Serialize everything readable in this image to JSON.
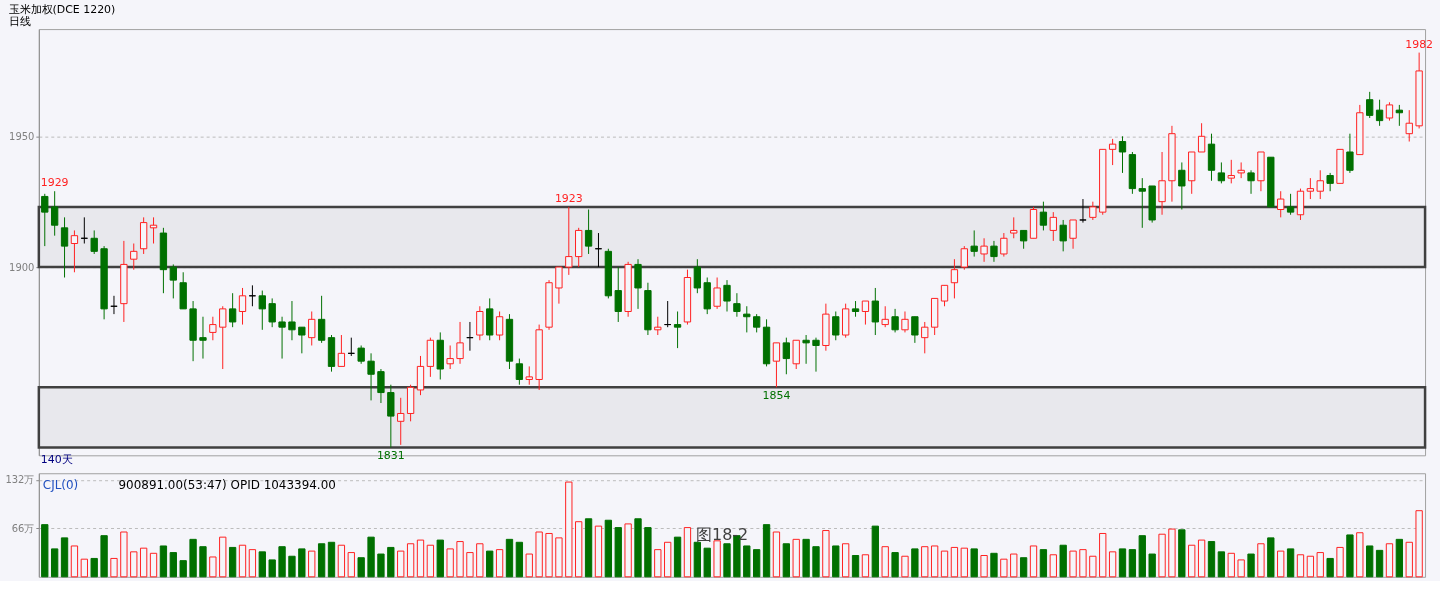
{
  "chart_data": [
    {
      "type": "candlestick",
      "title": "玉米加权(DCE 1220)",
      "subtitle": "日线",
      "categories": [
        null,
        null,
        null,
        null,
        null,
        null,
        null,
        null,
        null,
        null,
        null,
        null,
        null,
        null,
        null,
        null,
        null,
        null,
        null,
        null,
        null,
        null,
        null,
        null,
        null,
        null,
        null,
        null,
        null,
        null,
        null,
        null,
        null,
        null,
        null,
        null,
        null,
        null,
        null,
        null,
        null,
        null,
        null,
        null,
        null,
        null,
        null,
        null,
        null,
        null,
        null,
        null,
        null,
        null,
        null,
        null,
        null,
        null,
        null,
        null,
        null,
        null,
        null,
        null,
        null,
        null,
        null,
        null,
        null,
        null,
        null,
        null,
        null,
        null,
        null,
        null,
        null,
        null,
        null,
        null,
        null,
        null,
        null,
        null,
        null,
        null,
        null,
        null,
        null,
        null,
        null,
        null,
        null,
        null,
        null,
        null,
        null,
        null,
        null,
        null,
        null,
        null,
        null,
        null,
        null,
        null,
        null,
        null,
        null,
        null,
        null,
        null,
        null,
        null,
        null,
        null,
        null,
        null,
        null,
        null,
        null,
        null,
        null,
        null,
        null,
        null,
        null,
        null,
        null,
        null,
        null,
        null,
        null,
        null,
        null,
        null,
        null,
        null,
        null,
        null
      ],
      "ohlc": [
        [
          1927,
          1928,
          1908,
          1921
        ],
        [
          1923,
          1929,
          1912,
          1916
        ],
        [
          1915,
          1919,
          1896,
          1908
        ],
        [
          1909,
          1914,
          1898,
          1912
        ],
        [
          1911,
          1919,
          1909,
          1911
        ],
        [
          1911,
          1914,
          1905,
          1906
        ],
        [
          1907,
          1908,
          1880,
          1884
        ],
        [
          1885,
          1889,
          1882,
          1885
        ],
        [
          1886,
          1910,
          1879,
          1901
        ],
        [
          1903,
          1909,
          1899,
          1906
        ],
        [
          1907,
          1919,
          1905,
          1917
        ],
        [
          1915,
          1919,
          1909,
          1916
        ],
        [
          1913,
          1915,
          1890,
          1899
        ],
        [
          1900,
          1901,
          1888,
          1895
        ],
        [
          1894,
          1898,
          1884,
          1884
        ],
        [
          1884,
          1887,
          1864,
          1872
        ],
        [
          1873,
          1881,
          1865,
          1872
        ],
        [
          1875,
          1881,
          1872,
          1878
        ],
        [
          1877,
          1885,
          1861,
          1884
        ],
        [
          1884,
          1890,
          1877,
          1879
        ],
        [
          1883,
          1892,
          1878,
          1889
        ],
        [
          1889,
          1893,
          1885,
          1889
        ],
        [
          1889,
          1891,
          1876,
          1884
        ],
        [
          1886,
          1888,
          1877,
          1879
        ],
        [
          1879,
          1881,
          1865,
          1877
        ],
        [
          1879,
          1887,
          1872,
          1876
        ],
        [
          1877,
          1877,
          1867,
          1874
        ],
        [
          1873,
          1883,
          1870,
          1880
        ],
        [
          1880,
          1889,
          1871,
          1872
        ],
        [
          1873,
          1874,
          1860,
          1862
        ],
        [
          1862,
          1874,
          1862,
          1867
        ],
        [
          1867,
          1873,
          1866,
          1867
        ],
        [
          1869,
          1870,
          1863,
          1864
        ],
        [
          1864,
          1867,
          1849,
          1859
        ],
        [
          1860,
          1861,
          1848,
          1852
        ],
        [
          1852,
          1855,
          1831,
          1843
        ],
        [
          1841,
          1850,
          1832,
          1844
        ],
        [
          1844,
          1855,
          1841,
          1854
        ],
        [
          1853,
          1866,
          1851,
          1862
        ],
        [
          1862,
          1873,
          1858,
          1872
        ],
        [
          1872,
          1875,
          1857,
          1861
        ],
        [
          1863,
          1870,
          1861,
          1865
        ],
        [
          1865,
          1879,
          1863,
          1871
        ],
        [
          1873,
          1879,
          1868,
          1873
        ],
        [
          1874,
          1885,
          1872,
          1883
        ],
        [
          1884,
          1888,
          1872,
          1874
        ],
        [
          1874,
          1883,
          1872,
          1881
        ],
        [
          1880,
          1882,
          1861,
          1864
        ],
        [
          1863,
          1865,
          1855,
          1857
        ],
        [
          1857,
          1862,
          1855,
          1858
        ],
        [
          1857,
          1878,
          1853,
          1876
        ],
        [
          1877,
          1895,
          1876,
          1894
        ],
        [
          1892,
          1900,
          1886,
          1900
        ],
        [
          1900,
          1923,
          1897,
          1904
        ],
        [
          1904,
          1915,
          1900,
          1914
        ],
        [
          1914,
          1922,
          1905,
          1908
        ],
        [
          1907,
          1913,
          1900,
          1907
        ],
        [
          1906,
          1907,
          1888,
          1889
        ],
        [
          1891,
          1900,
          1879,
          1883
        ],
        [
          1883,
          1902,
          1881,
          1901
        ],
        [
          1901,
          1903,
          1884,
          1892
        ],
        [
          1891,
          1894,
          1874,
          1876
        ],
        [
          1876,
          1881,
          1874,
          1877
        ],
        [
          1878,
          1887,
          1877,
          1878
        ],
        [
          1878,
          1883,
          1869,
          1877
        ],
        [
          1879,
          1899,
          1878,
          1896
        ],
        [
          1900,
          1903,
          1890,
          1892
        ],
        [
          1894,
          1896,
          1882,
          1884
        ],
        [
          1885,
          1896,
          1884,
          1892
        ],
        [
          1893,
          1895,
          1883,
          1887
        ],
        [
          1886,
          1890,
          1881,
          1883
        ],
        [
          1882,
          1885,
          1875,
          1881
        ],
        [
          1881,
          1882,
          1875,
          1877
        ],
        [
          1877,
          1880,
          1862,
          1863
        ],
        [
          1864,
          1871,
          1854,
          1871
        ],
        [
          1871,
          1873,
          1859,
          1865
        ],
        [
          1863,
          1872,
          1861,
          1872
        ],
        [
          1872,
          1874,
          1863,
          1871
        ],
        [
          1872,
          1873,
          1860,
          1870
        ],
        [
          1870,
          1886,
          1868,
          1882
        ],
        [
          1881,
          1883,
          1872,
          1874
        ],
        [
          1874,
          1886,
          1873,
          1884
        ],
        [
          1884,
          1887,
          1881,
          1883
        ],
        [
          1883,
          1887,
          1878,
          1887
        ],
        [
          1887,
          1892,
          1874,
          1879
        ],
        [
          1878,
          1885,
          1877,
          1880
        ],
        [
          1881,
          1884,
          1875,
          1876
        ],
        [
          1876,
          1883,
          1875,
          1880
        ],
        [
          1881,
          1881,
          1871,
          1874
        ],
        [
          1873,
          1879,
          1867,
          1877
        ],
        [
          1877,
          1888,
          1874,
          1888
        ],
        [
          1887,
          1893,
          1885,
          1893
        ],
        [
          1894,
          1903,
          1888,
          1899
        ],
        [
          1900,
          1908,
          1899,
          1907
        ],
        [
          1908,
          1914,
          1904,
          1906
        ],
        [
          1905,
          1911,
          1902,
          1908
        ],
        [
          1908,
          1910,
          1902,
          1904
        ],
        [
          1905,
          1913,
          1904,
          1911
        ],
        [
          1913,
          1919,
          1911,
          1914
        ],
        [
          1914,
          1914,
          1907,
          1910
        ],
        [
          1911,
          1923,
          1911,
          1922
        ],
        [
          1921,
          1925,
          1914,
          1916
        ],
        [
          1914,
          1921,
          1910,
          1919
        ],
        [
          1916,
          1918,
          1906,
          1910
        ],
        [
          1911,
          1918,
          1907,
          1918
        ],
        [
          1918,
          1926,
          1917,
          1918
        ],
        [
          1919,
          1925,
          1918,
          1923
        ],
        [
          1921,
          1945,
          1920,
          1945
        ],
        [
          1945,
          1949,
          1939,
          1947
        ],
        [
          1948,
          1950,
          1936,
          1944
        ],
        [
          1943,
          1944,
          1928,
          1930
        ],
        [
          1930,
          1934,
          1915,
          1929
        ],
        [
          1931,
          1931,
          1917,
          1918
        ],
        [
          1925,
          1944,
          1920,
          1933
        ],
        [
          1933,
          1954,
          1925,
          1951
        ],
        [
          1937,
          1940,
          1922,
          1931
        ],
        [
          1933,
          1944,
          1928,
          1944
        ],
        [
          1944,
          1955,
          1944,
          1950
        ],
        [
          1947,
          1951,
          1933,
          1937
        ],
        [
          1936,
          1940,
          1932,
          1933
        ],
        [
          1934,
          1941,
          1932,
          1935
        ],
        [
          1936,
          1940,
          1934,
          1937
        ],
        [
          1936,
          1937,
          1928,
          1933
        ],
        [
          1933,
          1944,
          1929,
          1944
        ],
        [
          1942,
          1942,
          1923,
          1923
        ],
        [
          1922,
          1929,
          1919,
          1926
        ],
        [
          1923,
          1928,
          1920,
          1921
        ],
        [
          1920,
          1930,
          1918,
          1929
        ],
        [
          1929,
          1934,
          1926,
          1930
        ],
        [
          1929,
          1937,
          1926,
          1933
        ],
        [
          1935,
          1936,
          1929,
          1932
        ],
        [
          1932,
          1945,
          1932,
          1945
        ],
        [
          1944,
          1951,
          1936,
          1937
        ],
        [
          1943,
          1962,
          1943,
          1959
        ],
        [
          1964,
          1967,
          1957,
          1958
        ],
        [
          1960,
          1964,
          1954,
          1956
        ],
        [
          1957,
          1963,
          1956,
          1962
        ],
        [
          1960,
          1962,
          1954,
          1959
        ],
        [
          1951,
          1960,
          1948,
          1955
        ],
        [
          1954,
          1982,
          1953,
          1975
        ]
      ],
      "colors": [
        "#007000",
        "#007000",
        "#007000",
        "#ff2020",
        "#000000",
        "#007000",
        "#007000",
        "#000000",
        "#ff2020",
        "#ff2020",
        "#ff2020",
        "#ff2020",
        "#007000",
        "#007000",
        "#007000",
        "#007000",
        "#007000",
        "#ff2020",
        "#ff2020",
        "#007000",
        "#ff2020",
        "#000000",
        "#007000",
        "#007000",
        "#007000",
        "#007000",
        "#007000",
        "#ff2020",
        "#007000",
        "#007000",
        "#ff2020",
        "#000000",
        "#007000",
        "#007000",
        "#007000",
        "#007000",
        "#ff2020",
        "#ff2020",
        "#ff2020",
        "#ff2020",
        "#007000",
        "#ff2020",
        "#ff2020",
        "#000000",
        "#ff2020",
        "#007000",
        "#ff2020",
        "#007000",
        "#007000",
        "#ff2020",
        "#ff2020",
        "#ff2020",
        "#ff2020",
        "#ff2020",
        "#ff2020",
        "#007000",
        "#000000",
        "#007000",
        "#007000",
        "#ff2020",
        "#007000",
        "#007000",
        "#ff2020",
        "#000000",
        "#007000",
        "#ff2020",
        "#007000",
        "#007000",
        "#ff2020",
        "#007000",
        "#007000",
        "#007000",
        "#007000",
        "#007000",
        "#ff2020",
        "#007000",
        "#ff2020",
        "#007000",
        "#007000",
        "#ff2020",
        "#007000",
        "#ff2020",
        "#007000",
        "#ff2020",
        "#007000",
        "#ff2020",
        "#007000",
        "#ff2020",
        "#007000",
        "#ff2020",
        "#ff2020",
        "#ff2020",
        "#ff2020",
        "#ff2020",
        "#007000",
        "#ff2020",
        "#007000",
        "#ff2020",
        "#ff2020",
        "#007000",
        "#ff2020",
        "#007000",
        "#ff2020",
        "#007000",
        "#ff2020",
        "#000000",
        "#ff2020",
        "#ff2020",
        "#ff2020",
        "#007000",
        "#007000",
        "#007000",
        "#007000",
        "#ff2020",
        "#ff2020",
        "#007000",
        "#ff2020",
        "#ff2020",
        "#007000",
        "#007000",
        "#ff2020",
        "#ff2020",
        "#007000",
        "#ff2020",
        "#007000",
        "#ff2020",
        "#007000",
        "#ff2020",
        "#ff2020",
        "#ff2020",
        "#007000",
        "#ff2020",
        "#007000",
        "#ff2020",
        "#007000",
        "#007000",
        "#ff2020",
        "#007000",
        "#ff2020",
        "#ff2020"
      ],
      "ylim": [
        1828,
        1991
      ],
      "yticks": [
        1900,
        1950
      ],
      "grid": "y",
      "tick_labels": "y",
      "bands": [
        {
          "axis": "y",
          "from": 1900,
          "to": 1923,
          "color": "#404040"
        },
        {
          "axis": "y",
          "from": 1831,
          "to": 1854,
          "color": "#404040"
        }
      ],
      "annotations": [
        {
          "text": "1929",
          "y": 1929
        },
        {
          "text": "1923",
          "y": 1923
        },
        {
          "text": "1831",
          "y": 1831
        },
        {
          "text": "1854",
          "y": 1854
        },
        {
          "text": "1982",
          "y": 1982
        },
        "140天"
      ]
    },
    {
      "type": "bar",
      "categories": [
        null,
        null,
        null,
        null,
        null,
        null,
        null,
        null,
        null,
        null,
        null,
        null,
        null,
        null,
        null,
        null,
        null,
        null,
        null,
        null,
        null,
        null,
        null,
        null,
        null,
        null,
        null,
        null,
        null,
        null,
        null,
        null,
        null,
        null,
        null,
        null,
        null,
        null,
        null,
        null,
        null,
        null,
        null,
        null,
        null,
        null,
        null,
        null,
        null,
        null,
        null,
        null,
        null,
        null,
        null,
        null,
        null,
        null,
        null,
        null,
        null,
        null,
        null,
        null,
        null,
        null,
        null,
        null,
        null,
        null,
        null,
        null,
        null,
        null,
        null,
        null,
        null,
        null,
        null,
        null,
        null,
        null,
        null,
        null,
        null,
        null,
        null,
        null,
        null,
        null,
        null,
        null,
        null,
        null,
        null,
        null,
        null,
        null,
        null,
        null,
        null,
        null,
        null,
        null,
        null,
        null,
        null,
        null,
        null,
        null,
        null,
        null,
        null,
        null,
        null,
        null,
        null,
        null,
        null,
        null,
        null,
        null,
        null,
        null,
        null,
        null,
        null,
        null,
        null,
        null,
        null,
        null,
        null,
        null,
        null,
        null,
        null,
        null,
        null,
        null
      ],
      "series": [
        {
          "color": "#ff2020",
          "values": [
            null,
            null,
            null,
            42,
            24,
            null,
            null,
            25,
            61,
            34,
            39,
            32,
            null,
            null,
            null,
            null,
            null,
            27,
            54,
            null,
            43,
            37,
            null,
            null,
            null,
            null,
            null,
            35,
            null,
            null,
            43,
            33,
            null,
            null,
            null,
            null,
            35,
            45,
            50,
            43,
            null,
            38,
            48,
            33,
            45,
            null,
            37,
            null,
            null,
            31,
            61,
            59,
            53,
            129,
            75,
            null,
            69,
            null,
            null,
            72,
            null,
            null,
            37,
            47,
            null,
            67,
            null,
            null,
            49,
            null,
            null,
            null,
            null,
            null,
            61,
            null,
            51,
            null,
            null,
            63,
            null,
            45,
            null,
            30,
            null,
            41,
            null,
            28,
            null,
            41,
            42,
            35,
            40,
            39,
            null,
            29,
            null,
            24,
            31,
            null,
            42,
            null,
            30,
            null,
            35,
            37,
            28,
            59,
            34,
            null,
            null,
            null,
            null,
            58,
            65,
            null,
            43,
            50,
            null,
            null,
            32,
            23,
            null,
            45,
            null,
            35,
            null,
            30,
            28,
            33,
            null,
            40,
            null,
            60,
            null,
            null,
            45,
            null,
            47,
            90
          ]
        },
        {
          "color": "#007000",
          "values": [
            71,
            38,
            53,
            null,
            null,
            25,
            56,
            null,
            null,
            null,
            null,
            null,
            42,
            33,
            22,
            51,
            41,
            null,
            null,
            40,
            null,
            null,
            34,
            23,
            41,
            28,
            38,
            null,
            45,
            47,
            null,
            null,
            26,
            54,
            31,
            40,
            null,
            null,
            null,
            null,
            50,
            null,
            null,
            null,
            null,
            35,
            null,
            51,
            47,
            null,
            null,
            null,
            null,
            null,
            null,
            79,
            null,
            77,
            67,
            null,
            79,
            67,
            null,
            null,
            54,
            null,
            47,
            39,
            null,
            45,
            56,
            42,
            37,
            71,
            null,
            45,
            null,
            51,
            41,
            null,
            42,
            null,
            29,
            null,
            69,
            null,
            33,
            null,
            38,
            null,
            null,
            null,
            null,
            null,
            38,
            null,
            32,
            null,
            null,
            26,
            null,
            37,
            null,
            43,
            null,
            null,
            null,
            null,
            null,
            38,
            37,
            56,
            31,
            null,
            null,
            64,
            null,
            null,
            48,
            34,
            null,
            null,
            31,
            null,
            53,
            null,
            38,
            null,
            null,
            null,
            25,
            null,
            57,
            null,
            42,
            36,
            null,
            51,
            null,
            null
          ]
        }
      ],
      "ylim": [
        0,
        141
      ],
      "yticks": [
        {
          "value": 132,
          "label": "132万"
        },
        {
          "value": 66,
          "label": "66万"
        }
      ],
      "grid": "y",
      "tick_labels": "y",
      "annotations": [
        "CJL(0)",
        "900891.00(53:47)  OPID 1043394.00",
        "图18-2"
      ]
    }
  ]
}
